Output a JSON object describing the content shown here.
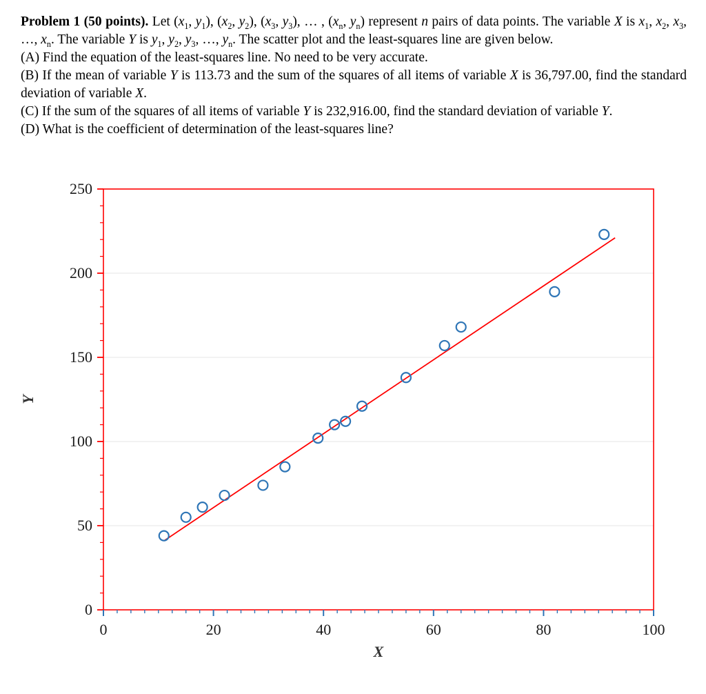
{
  "problem": {
    "intro_html": "<b>Problem 1 (50 points).</b> Let (<i>x</i><sub>1</sub>, <i>y</i><sub>1</sub>), (<i>x</i><sub>2</sub>, <i>y</i><sub>2</sub>), (<i>x</i><sub>3</sub>, <i>y</i><sub>3</sub>), … , (<i>x</i><sub>n</sub>, <i>y</i><sub>n</sub>) represent <i>n</i> pairs of data points. The variable <i>X</i> is <i>x</i><sub>1</sub>, <i>x</i><sub>2</sub>, <i>x</i><sub>3</sub>, …, <i>x</i><sub>n</sub>. The variable <i>Y</i> is <i>y</i><sub>1</sub>, <i>y</i><sub>2</sub>, <i>y</i><sub>3</sub>, …, <i>y</i><sub>n</sub>. The scatter plot and the least-squares line are given below.",
    "item_a_html": "(A) Find the equation of the least-squares line. No need to be very accurate.",
    "item_b_html": "(B) If the mean of variable <i>Y</i> is 113.73 and the sum of the squares of all items of variable <i>X</i> is 36,797.00, find the standard deviation of variable <i>X</i>.",
    "item_c_html": "(C) If the sum of the squares of all items of variable <i>Y</i> is 232,916.00, find the standard deviation of variable <i>Y</i>.",
    "item_d_html": "(D) What is the coefficient of determination of the least-squares line?"
  },
  "chart_data": {
    "type": "scatter",
    "title": "",
    "xlabel": "X",
    "ylabel": "Y",
    "xlim": [
      0,
      100
    ],
    "ylim": [
      0,
      250
    ],
    "x_major_ticks": [
      0,
      20,
      40,
      60,
      80,
      100
    ],
    "y_major_ticks": [
      0,
      50,
      100,
      150,
      200,
      250
    ],
    "x_minor_step": 2.5,
    "y_minor_step": 10,
    "grid": "horizontal-light",
    "legend": "none",
    "points": [
      [
        11,
        44
      ],
      [
        15,
        55
      ],
      [
        18,
        61
      ],
      [
        22,
        68
      ],
      [
        29,
        74
      ],
      [
        33,
        85
      ],
      [
        39,
        102
      ],
      [
        42,
        110
      ],
      [
        44,
        112
      ],
      [
        47,
        121
      ],
      [
        55,
        138
      ],
      [
        62,
        157
      ],
      [
        65,
        168
      ],
      [
        82,
        189
      ],
      [
        91,
        223
      ]
    ],
    "trendline": {
      "x1": 11,
      "y1": 41,
      "x2": 93,
      "y2": 221
    },
    "colors": {
      "frame": "#ff0000",
      "trendline": "#ff0000",
      "marker": "#2e75b6",
      "x_ticks": "#2e75b6",
      "y_ticks": "#ff0000",
      "grid": "#e6e6e6",
      "tick_label": "#1a1a1a",
      "axis_title": "#333333"
    }
  }
}
